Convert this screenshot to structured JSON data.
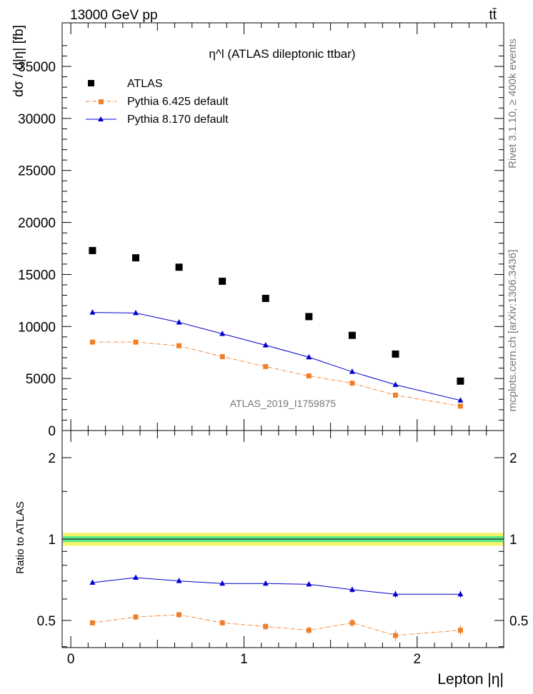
{
  "header": {
    "left": "13000 GeV pp",
    "right": "tt̄"
  },
  "side_labels": {
    "rivet": "Rivet 3.1.10, ≥ 400k events",
    "mcplots": "mcplots.cern.ch [arXiv:1306.3436]"
  },
  "chart_data": {
    "type": "scatter",
    "title": "η^l (ATLAS dileptonic ttbar)",
    "watermark": "ATLAS_2019_I1759875",
    "xlabel": "Lepton |η|",
    "ylabel": "dσ / d|η| [fb]",
    "ratio_ylabel": "Ratio to ATLAS",
    "xlim": [
      -0.05,
      2.5
    ],
    "ylim": [
      0,
      35000
    ],
    "ratio_ylim": [
      0.35,
      2.3
    ],
    "legend_position": "top-left",
    "x_ticks": [
      "0",
      "1",
      "2"
    ],
    "y_ticks": [
      "0",
      "5000",
      "10000",
      "15000",
      "20000",
      "25000",
      "30000",
      "35000"
    ],
    "ratio_ticks": [
      "0.5",
      "1",
      "2"
    ],
    "x": [
      0.125,
      0.375,
      0.625,
      0.875,
      1.125,
      1.375,
      1.625,
      1.875,
      2.25
    ],
    "series": [
      {
        "name": "ATLAS",
        "style": "square-marker",
        "color": "#000000",
        "values": [
          17300,
          16600,
          15700,
          14350,
          12700,
          10950,
          9150,
          7350,
          4750
        ]
      },
      {
        "name": "Pythia 6.425 default",
        "style": "dash-dot-square",
        "color": "#f07f2a",
        "values": [
          8500,
          8500,
          8150,
          7100,
          6150,
          5250,
          4550,
          3400,
          2350
        ],
        "ratio": [
          0.49,
          0.515,
          0.525,
          0.49,
          0.475,
          0.46,
          0.49,
          0.44,
          0.46
        ],
        "ratio_err": [
          0.01,
          0.012,
          0.012,
          0.012,
          0.015,
          0.015,
          0.018,
          0.02,
          0.02
        ]
      },
      {
        "name": "Pythia 8.170 default",
        "style": "solid-triangle",
        "color": "#0000cc",
        "values": [
          11350,
          11300,
          10400,
          9300,
          8200,
          7050,
          5650,
          4400,
          2900
        ],
        "ratio": [
          0.69,
          0.72,
          0.7,
          0.685,
          0.685,
          0.68,
          0.65,
          0.625,
          0.625
        ],
        "ratio_err": [
          0.008,
          0.01,
          0.01,
          0.01,
          0.012,
          0.012,
          0.016,
          0.018,
          0.018
        ]
      }
    ],
    "ratio_band": {
      "inner_color": "#5ee88a",
      "outer_color": "#f5f56a",
      "inner": [
        0.975,
        1.025
      ],
      "outer": [
        0.945,
        1.055
      ]
    }
  }
}
